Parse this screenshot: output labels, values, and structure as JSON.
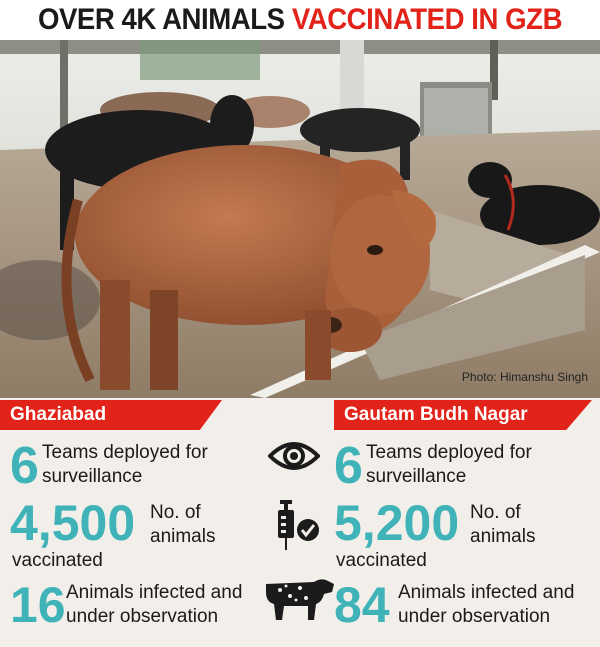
{
  "headline": {
    "part1": "OVER 4K ANIMALS",
    "part2": "VACCINATED IN GZB"
  },
  "photo": {
    "credit": "Photo: Himanshu Singh"
  },
  "colors": {
    "accent_red": "#e2231a",
    "teal": "#3fb3b8",
    "panel_bg": "#f2eeea"
  },
  "icons": [
    "eye-icon",
    "syringe-check-icon",
    "cow-icon"
  ],
  "regions": [
    {
      "name": "Ghaziabad",
      "teams": {
        "value": "6",
        "label_line1": "Teams deployed for",
        "label_line2": "surveillance"
      },
      "vaccinated": {
        "value": "4,500",
        "label_line1": "No. of",
        "label_line2": "animals",
        "label_line3": "vaccinated"
      },
      "infected": {
        "value": "16",
        "label_line1": "Animals infected and",
        "label_line2": "under observation"
      }
    },
    {
      "name": "Gautam Budh Nagar",
      "teams": {
        "value": "6",
        "label_line1": "Teams deployed for",
        "label_line2": "surveillance"
      },
      "vaccinated": {
        "value": "5,200",
        "label_line1": "No. of",
        "label_line2": "animals",
        "label_line3": "vaccinated"
      },
      "infected": {
        "value": "84",
        "label_line1": "Animals infected and",
        "label_line2": "under observation"
      }
    }
  ]
}
